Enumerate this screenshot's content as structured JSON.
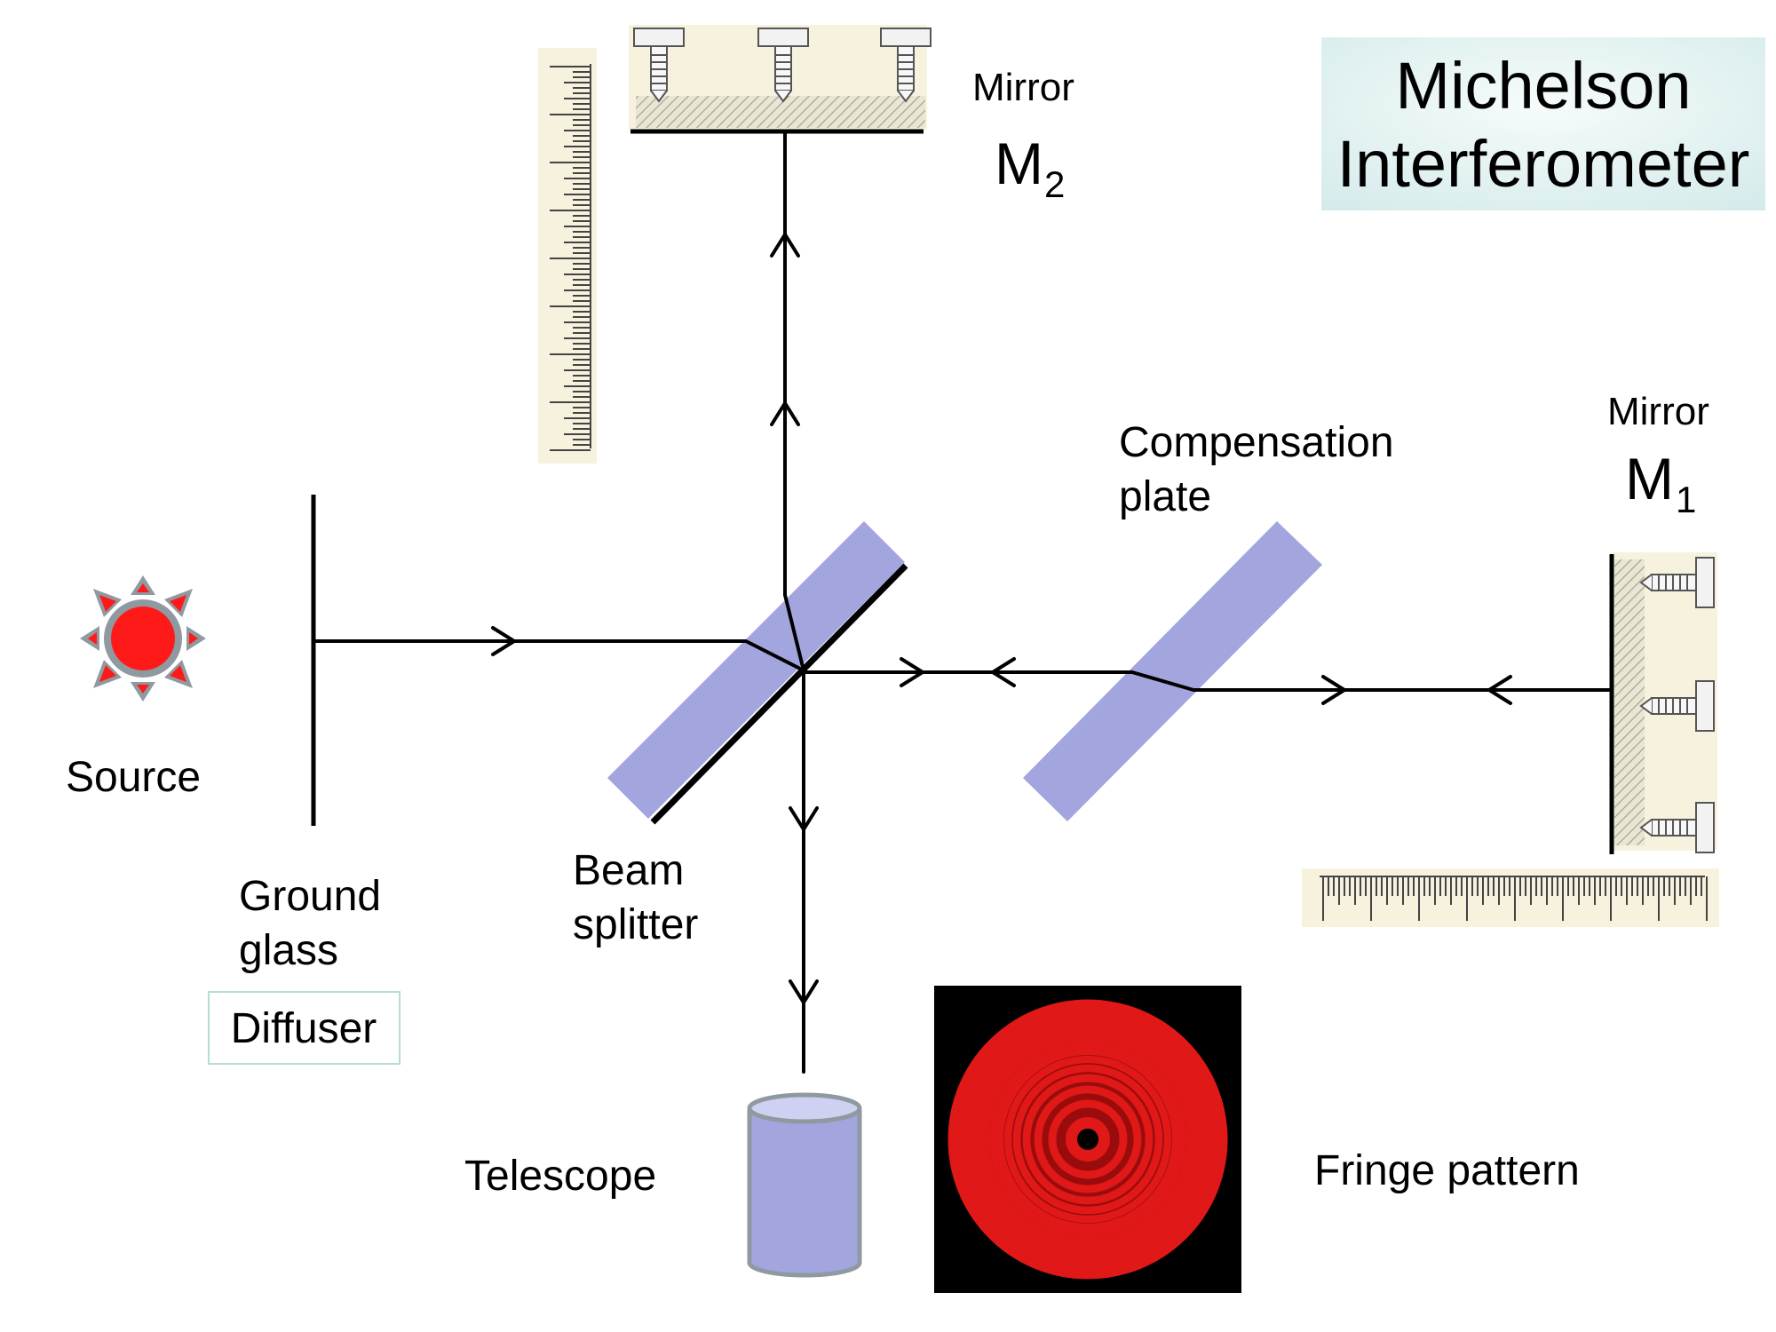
{
  "title": {
    "line1": "Michelson",
    "line2": "Interferometer"
  },
  "labels": {
    "mirror_m2": "Mirror",
    "m2_symbol": "M",
    "m2_subscript": "2",
    "mirror_m1": "Mirror",
    "m1_symbol": "M",
    "m1_subscript": "1",
    "compensation_line1": "Compensation",
    "compensation_line2": "plate",
    "source": "Source",
    "ground_glass_line1": "Ground",
    "ground_glass_line2": "glass",
    "diffuser": "Diffuser",
    "beam_splitter_line1": "Beam",
    "beam_splitter_line2": "splitter",
    "telescope": "Telescope",
    "fringe_pattern": "Fringe pattern"
  },
  "colors": {
    "optic_fill": "#a3a6de",
    "source_red": "#ff1a1a",
    "source_grey": "#8f9aa0",
    "mount_cream": "#f6f2de",
    "title_bg": "#e6f3f3",
    "fringe_red": "#e01818",
    "beam": "#000000"
  }
}
